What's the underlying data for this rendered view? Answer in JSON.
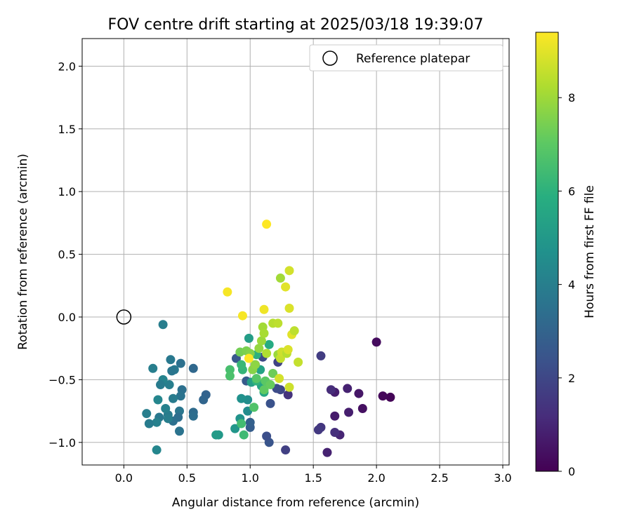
{
  "chart_data": {
    "type": "scatter",
    "title": "FOV centre drift starting at 2025/03/18 19:39:07",
    "xlabel": "Angular distance from reference (arcmin)",
    "ylabel": "Rotation from reference (arcmin)",
    "xlim": [
      -0.33,
      3.05
    ],
    "ylim": [
      -1.18,
      2.22
    ],
    "xticks": [
      "0.0",
      "0.5",
      "1.0",
      "1.5",
      "2.0",
      "2.5",
      "3.0"
    ],
    "yticks": [
      "−1.0",
      "−0.5",
      "0.0",
      "0.5",
      "1.0",
      "1.5",
      "2.0"
    ],
    "grid": true,
    "legend": {
      "position": "top-right",
      "entries": [
        {
          "label": "Reference platepar",
          "marker": "open-circle"
        }
      ]
    },
    "reference": {
      "x": 0.0,
      "y": 0.0
    },
    "colorbar": {
      "label": "Hours from first FF file",
      "range": [
        0,
        9.4
      ],
      "ticks": [
        "0",
        "2",
        "4",
        "6",
        "8"
      ],
      "colormap": "viridis"
    },
    "points": [
      [
        2.11,
        -0.64,
        0.1
      ],
      [
        2.05,
        -0.63,
        0.2
      ],
      [
        2.0,
        -0.2,
        0.3
      ],
      [
        1.89,
        -0.73,
        0.4
      ],
      [
        1.86,
        -0.61,
        0.6
      ],
      [
        1.78,
        -0.76,
        0.8
      ],
      [
        1.77,
        -0.57,
        0.9
      ],
      [
        1.71,
        -0.94,
        1.0
      ],
      [
        1.67,
        -0.6,
        0.8
      ],
      [
        1.67,
        -0.79,
        0.7
      ],
      [
        1.64,
        -0.58,
        1.2
      ],
      [
        1.61,
        -1.08,
        0.9
      ],
      [
        1.67,
        -0.92,
        1.3
      ],
      [
        1.56,
        -0.88,
        1.5
      ],
      [
        1.54,
        -0.9,
        1.6
      ],
      [
        1.56,
        -0.31,
        1.7
      ],
      [
        1.3,
        -0.62,
        1.4
      ],
      [
        1.28,
        -1.06,
        1.8
      ],
      [
        1.22,
        -0.36,
        1.9
      ],
      [
        1.24,
        -0.58,
        2.0
      ],
      [
        1.21,
        -0.57,
        2.2
      ],
      [
        1.16,
        -0.69,
        2.4
      ],
      [
        1.15,
        -1.0,
        2.5
      ],
      [
        1.13,
        -0.95,
        2.3
      ],
      [
        1.1,
        -0.32,
        2.1
      ],
      [
        1.04,
        -0.38,
        2.6
      ],
      [
        1.0,
        -0.88,
        2.8
      ],
      [
        1.0,
        -0.84,
        2.9
      ],
      [
        0.97,
        -0.51,
        2.7
      ],
      [
        0.89,
        -0.33,
        2.6
      ],
      [
        0.65,
        -0.62,
        3.0
      ],
      [
        0.63,
        -0.66,
        3.1
      ],
      [
        0.55,
        -0.41,
        3.2
      ],
      [
        0.55,
        -0.76,
        3.3
      ],
      [
        0.55,
        -0.79,
        3.4
      ],
      [
        0.46,
        -0.58,
        3.5
      ],
      [
        0.45,
        -0.63,
        3.6
      ],
      [
        0.45,
        -0.37,
        3.5
      ],
      [
        0.44,
        -0.75,
        3.7
      ],
      [
        0.44,
        -0.91,
        3.6
      ],
      [
        0.43,
        -0.8,
        3.4
      ],
      [
        0.4,
        -0.42,
        3.8
      ],
      [
        0.39,
        -0.65,
        3.9
      ],
      [
        0.38,
        -0.43,
        3.7
      ],
      [
        0.37,
        -0.34,
        3.8
      ],
      [
        0.39,
        -0.83,
        3.5
      ],
      [
        0.36,
        -0.54,
        4.0
      ],
      [
        0.35,
        -0.78,
        3.9
      ],
      [
        0.35,
        -0.81,
        4.0
      ],
      [
        0.33,
        -0.73,
        4.1
      ],
      [
        0.31,
        -0.5,
        4.2
      ],
      [
        0.31,
        -0.06,
        4.0
      ],
      [
        0.29,
        -0.54,
        3.9
      ],
      [
        0.28,
        -0.8,
        3.8
      ],
      [
        0.27,
        -0.66,
        4.3
      ],
      [
        0.26,
        -0.84,
        4.1
      ],
      [
        0.26,
        -1.06,
        4.3
      ],
      [
        0.23,
        -0.41,
        4.0
      ],
      [
        0.2,
        -0.85,
        3.9
      ],
      [
        0.18,
        -0.77,
        4.0
      ],
      [
        0.98,
        -0.75,
        4.5
      ],
      [
        0.98,
        -0.66,
        4.6
      ],
      [
        0.93,
        -0.65,
        4.7
      ],
      [
        0.92,
        -0.81,
        4.8
      ],
      [
        0.88,
        -0.89,
        4.9
      ],
      [
        0.75,
        -0.94,
        5.0
      ],
      [
        0.73,
        -0.94,
        5.1
      ],
      [
        0.99,
        -0.17,
        5.2
      ],
      [
        1.01,
        -0.52,
        5.3
      ],
      [
        1.08,
        -0.42,
        5.4
      ],
      [
        1.09,
        -0.55,
        5.5
      ],
      [
        1.11,
        -0.6,
        5.6
      ],
      [
        1.15,
        -0.22,
        5.8
      ],
      [
        1.05,
        -0.3,
        6.0
      ],
      [
        1.05,
        -0.51,
        6.1
      ],
      [
        0.94,
        -0.42,
        6.2
      ],
      [
        0.93,
        -0.38,
        6.3
      ],
      [
        0.95,
        -0.94,
        6.4
      ],
      [
        0.93,
        -0.85,
        6.5
      ],
      [
        0.84,
        -0.42,
        6.6
      ],
      [
        0.84,
        -0.47,
        6.7
      ],
      [
        1.03,
        -0.72,
        6.8
      ],
      [
        1.05,
        -0.49,
        6.9
      ],
      [
        1.12,
        -0.51,
        7.0
      ],
      [
        1.11,
        -0.58,
        7.1
      ],
      [
        1.16,
        -0.54,
        7.2
      ],
      [
        1.18,
        -0.45,
        7.3
      ],
      [
        0.92,
        -0.28,
        7.4
      ],
      [
        0.97,
        -0.27,
        7.5
      ],
      [
        1.0,
        -0.29,
        7.6
      ],
      [
        1.02,
        -0.42,
        7.7
      ],
      [
        1.04,
        -0.38,
        7.8
      ],
      [
        1.07,
        -0.25,
        7.9
      ],
      [
        1.09,
        -0.19,
        8.0
      ],
      [
        1.1,
        -0.08,
        8.1
      ],
      [
        1.11,
        -0.13,
        8.2
      ],
      [
        1.13,
        -0.29,
        8.3
      ],
      [
        1.18,
        -0.05,
        8.4
      ],
      [
        1.22,
        -0.05,
        8.5
      ],
      [
        1.22,
        -0.3,
        8.0
      ],
      [
        1.24,
        -0.33,
        8.6
      ],
      [
        1.25,
        -0.28,
        8.7
      ],
      [
        1.24,
        0.31,
        8.1
      ],
      [
        1.23,
        -0.49,
        8.8
      ],
      [
        1.29,
        -0.29,
        8.4
      ],
      [
        1.3,
        -0.26,
        8.9
      ],
      [
        1.31,
        -0.56,
        8.7
      ],
      [
        1.33,
        -0.14,
        9.0
      ],
      [
        1.35,
        -0.11,
        8.5
      ],
      [
        1.38,
        -0.36,
        8.6
      ],
      [
        1.31,
        0.37,
        8.8
      ],
      [
        1.28,
        0.24,
        9.0
      ],
      [
        1.31,
        0.07,
        8.9
      ],
      [
        1.11,
        0.06,
        9.2
      ],
      [
        0.94,
        0.01,
        9.3
      ],
      [
        0.82,
        0.2,
        9.3
      ],
      [
        0.99,
        -0.33,
        9.4
      ],
      [
        1.13,
        0.74,
        9.4
      ]
    ]
  }
}
